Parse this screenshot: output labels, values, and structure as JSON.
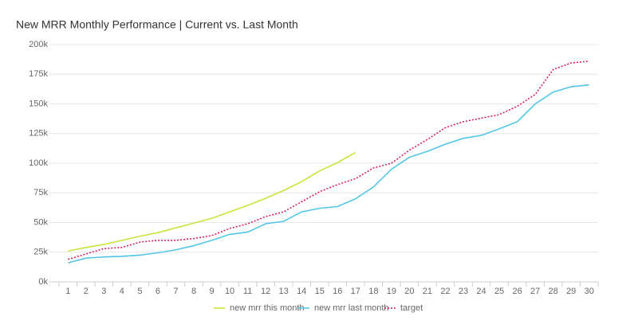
{
  "chart_data": {
    "type": "line",
    "title": "New MRR Monthly Performance | Current vs. Last Month",
    "categories": [
      "1",
      "2",
      "3",
      "4",
      "5",
      "6",
      "7",
      "8",
      "9",
      "10",
      "11",
      "12",
      "13",
      "14",
      "15",
      "16",
      "17",
      "18",
      "19",
      "20",
      "21",
      "22",
      "23",
      "24",
      "25",
      "26",
      "27",
      "28",
      "29",
      "30"
    ],
    "series": [
      {
        "name": "new mrr this month",
        "color": "#c8e43c",
        "dash": false,
        "values": [
          26000,
          29000,
          31500,
          35000,
          38500,
          41500,
          45500,
          49500,
          53500,
          59000,
          64500,
          70500,
          77000,
          84500,
          93500,
          100500,
          109000,
          null,
          null,
          null,
          null,
          null,
          null,
          null,
          null,
          null,
          null,
          null,
          null,
          null
        ]
      },
      {
        "name": "new mrr last month",
        "color": "#52c6e6",
        "dash": false,
        "values": [
          16000,
          20000,
          21000,
          21500,
          22500,
          24500,
          27000,
          30500,
          35000,
          40000,
          42000,
          49000,
          51000,
          59000,
          62000,
          63500,
          70000,
          80000,
          95000,
          105000,
          110000,
          116000,
          121000,
          123500,
          129000,
          135000,
          150000,
          160000,
          164500,
          166000
        ]
      },
      {
        "name": "target",
        "color": "#d4145a",
        "dash": true,
        "values": [
          19000,
          23500,
          28000,
          29000,
          33500,
          35000,
          35000,
          36500,
          39000,
          45000,
          49000,
          55000,
          59000,
          67500,
          76000,
          82000,
          87000,
          96000,
          100000,
          111000,
          120000,
          130000,
          135000,
          138000,
          141000,
          148000,
          158000,
          179000,
          184500,
          186000
        ]
      }
    ],
    "ylim": [
      0,
      200000
    ],
    "yticks": [
      {
        "value": 0,
        "label": "0k"
      },
      {
        "value": 25000,
        "label": "25k"
      },
      {
        "value": 50000,
        "label": "50k"
      },
      {
        "value": 75000,
        "label": "75k"
      },
      {
        "value": 100000,
        "label": "100k"
      },
      {
        "value": 125000,
        "label": "125k"
      },
      {
        "value": 150000,
        "label": "150k"
      },
      {
        "value": 175000,
        "label": "175k"
      },
      {
        "value": 200000,
        "label": "200k"
      }
    ],
    "grid": true
  }
}
